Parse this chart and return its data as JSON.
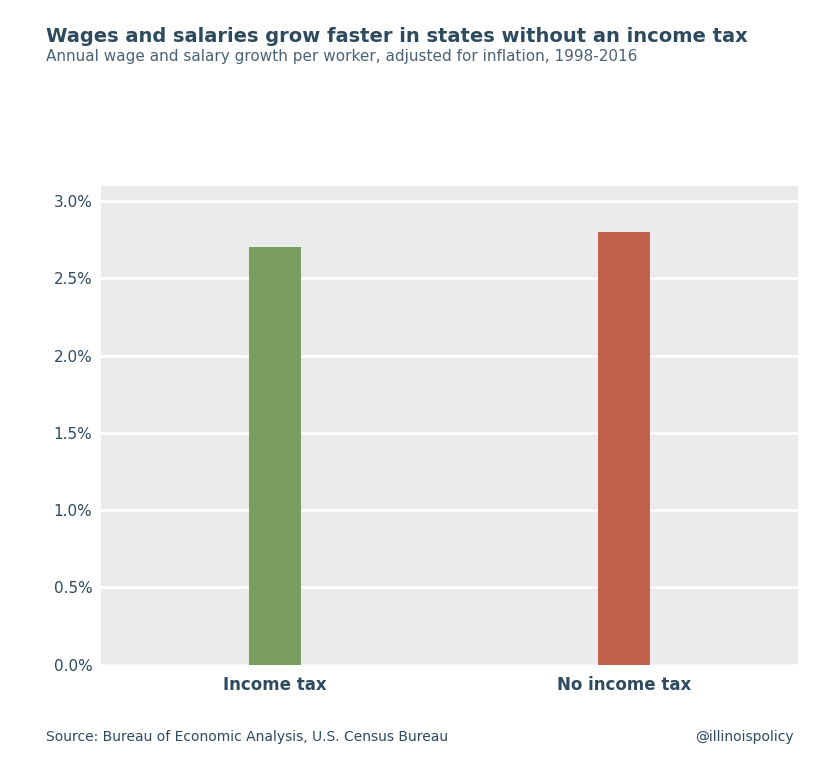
{
  "title": "Wages and salaries grow faster in states without an income tax",
  "subtitle": "Annual wage and salary growth per worker, adjusted for inflation, 1998-2016",
  "categories": [
    "Income tax",
    "No income tax"
  ],
  "values": [
    0.027,
    0.028
  ],
  "bar_colors": [
    "#7a9e5f",
    "#c0634a"
  ],
  "title_color": "#2d4a5e",
  "subtitle_color": "#4a6275",
  "tick_color": "#2d4a5e",
  "label_color": "#2d4a5e",
  "background_color": "#ffffff",
  "plot_bg_color": "#ebebeb",
  "grid_color": "#ffffff",
  "source_text": "Source: Bureau of Economic Analysis, U.S. Census Bureau",
  "watermark_text": "@illinoispolicy",
  "ylim": [
    0,
    0.031
  ],
  "yticks": [
    0.0,
    0.005,
    0.01,
    0.015,
    0.02,
    0.025,
    0.03
  ],
  "title_fontsize": 14,
  "subtitle_fontsize": 11,
  "tick_fontsize": 11,
  "label_fontsize": 12,
  "source_fontsize": 10,
  "bar_width": 0.15,
  "x_positions": [
    1,
    2
  ],
  "xlim": [
    0.5,
    2.5
  ]
}
